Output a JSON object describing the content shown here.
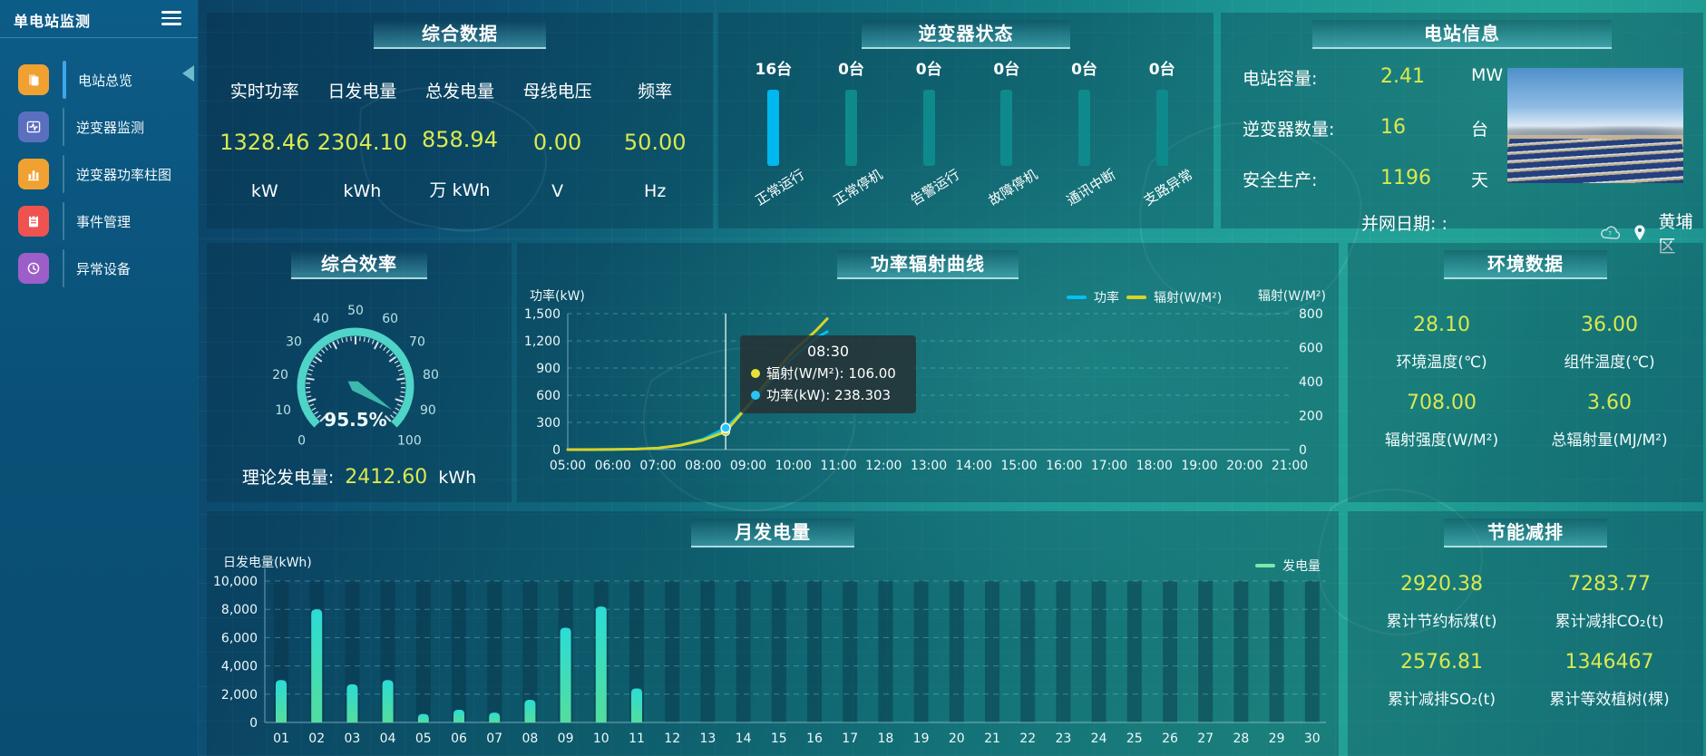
{
  "sidebar": {
    "title": "单电站监测",
    "items": [
      {
        "label": "电站总览",
        "icon": "overview-icon",
        "color": "#f0a132",
        "active": true
      },
      {
        "label": "逆变器监测",
        "icon": "inverter-monitor-icon",
        "color": "#5b6fc0",
        "active": false
      },
      {
        "label": "逆变器功率柱图",
        "icon": "inverter-power-bars-icon",
        "color": "#f0a132",
        "active": false
      },
      {
        "label": "事件管理",
        "icon": "event-management-icon",
        "color": "#ef5350",
        "active": false
      },
      {
        "label": "异常设备",
        "icon": "abnormal-device-icon",
        "color": "#9c5fc9",
        "active": false
      }
    ]
  },
  "summary_panel": {
    "title": "综合数据",
    "metrics": [
      {
        "label": "实时功率",
        "value": "1328.46",
        "unit": "kW"
      },
      {
        "label": "日发电量",
        "value": "2304.10",
        "unit": "kWh"
      },
      {
        "label": "总发电量",
        "value": "858.94",
        "unit": "万 kWh"
      },
      {
        "label": "母线电压",
        "value": "0.00",
        "unit": "V"
      },
      {
        "label": "频率",
        "value": "50.00",
        "unit": "Hz"
      }
    ]
  },
  "inverter_panel": {
    "title": "逆变器状态",
    "items": [
      {
        "count": "16台",
        "label": "正常运行",
        "highlight": true
      },
      {
        "count": "0台",
        "label": "正常停机",
        "highlight": false
      },
      {
        "count": "0台",
        "label": "告警运行",
        "highlight": false
      },
      {
        "count": "0台",
        "label": "故障停机",
        "highlight": false
      },
      {
        "count": "0台",
        "label": "通讯中断",
        "highlight": false
      },
      {
        "count": "0台",
        "label": "支路异常",
        "highlight": false
      }
    ]
  },
  "station_panel": {
    "title": "电站信息",
    "rows": [
      {
        "label": "电站容量:",
        "value": "2.41",
        "unit": "MW"
      },
      {
        "label": "逆变器数量:",
        "value": "16",
        "unit": "台"
      },
      {
        "label": "安全生产:",
        "value": "1196",
        "unit": "天"
      }
    ],
    "grid_date_label": "并网日期: :",
    "location": "黄埔区"
  },
  "efficiency_panel": {
    "title": "综合效率",
    "theory_label": "理论发电量:",
    "theory_value": "2412.60",
    "theory_unit": "kWh"
  },
  "power_panel": {
    "title": "功率辐射曲线",
    "left_axis_label": "功率(kW)",
    "right_axis_label": "辐射(W/M²)",
    "legend": [
      {
        "name": "功率",
        "color": "#00c2f4"
      },
      {
        "name": "辐射(W/M²)",
        "color": "#d9d327"
      }
    ],
    "tooltip": {
      "time": "08:30",
      "rows": [
        {
          "name": "辐射(W/M²): 106.00",
          "color": "#e6e23a"
        },
        {
          "name": "功率(kW): 238.303",
          "color": "#27c5f5"
        }
      ]
    }
  },
  "environment_panel": {
    "title": "环境数据",
    "metrics": [
      {
        "value": "28.10",
        "label": "环境温度(℃)"
      },
      {
        "value": "36.00",
        "label": "组件温度(℃)"
      },
      {
        "value": "708.00",
        "label": "辐射强度(W/M²)"
      },
      {
        "value": "3.60",
        "label": "总辐射量(MJ/M²)"
      }
    ]
  },
  "monthly_panel": {
    "title": "月发电量",
    "ylabel": "日发电量(kWh)",
    "legend": "发电量"
  },
  "saving_panel": {
    "title": "节能减排",
    "metrics": [
      {
        "value": "2920.38",
        "label": "累计节约标煤(t)"
      },
      {
        "value": "7283.77",
        "label": "累计减排CO₂(t)"
      },
      {
        "value": "2576.81",
        "label": "累计减排SO₂(t)"
      },
      {
        "value": "1346467",
        "label": "累计等效植树(棵)"
      }
    ]
  },
  "chart_data": [
    {
      "id": "inverter_status_bars",
      "type": "bar",
      "title": "逆变器状态",
      "categories": [
        "正常运行",
        "正常停机",
        "告警运行",
        "故障停机",
        "通讯中断",
        "支路异常"
      ],
      "values": [
        16,
        0,
        0,
        0,
        0,
        0
      ],
      "bar_colors": [
        "#00b7f0",
        "#0f8a8c",
        "#0f8a8c",
        "#0f8a8c",
        "#0f8a8c",
        "#0f8a8c"
      ]
    },
    {
      "id": "efficiency_gauge",
      "type": "gauge",
      "min": 0,
      "max": 100,
      "tick_labels": [
        "0",
        "10",
        "20",
        "30",
        "40",
        "50",
        "60",
        "70",
        "80",
        "90",
        "100"
      ],
      "value": 95.5,
      "value_label": "95.5%",
      "ring_color": "#4fd4c8"
    },
    {
      "id": "power_radiation_curve",
      "type": "line",
      "title": "功率辐射曲线",
      "x_labels": [
        "05:00",
        "06:00",
        "07:00",
        "08:00",
        "09:00",
        "10:00",
        "11:00",
        "12:00",
        "13:00",
        "14:00",
        "15:00",
        "16:00",
        "17:00",
        "18:00",
        "19:00",
        "20:00",
        "21:00"
      ],
      "x_range_hours": [
        5,
        21
      ],
      "left_axis": {
        "label": "功率(kW)",
        "ticks": [
          "1,500",
          "1,200",
          "900",
          "600",
          "300",
          "0"
        ],
        "max": 1500
      },
      "right_axis": {
        "label": "辐射(W/M²)",
        "ticks": [
          "800",
          "600",
          "400",
          "200",
          "0"
        ],
        "max": 800
      },
      "series": [
        {
          "name": "功率",
          "unit": "kW",
          "axis": "left",
          "color": "#00c2f4",
          "points": [
            [
              5,
              0
            ],
            [
              5.5,
              0
            ],
            [
              6,
              2
            ],
            [
              6.5,
              6
            ],
            [
              7,
              16
            ],
            [
              7.5,
              48
            ],
            [
              8,
              115
            ],
            [
              8.5,
              238.3
            ],
            [
              9,
              480
            ],
            [
              9.5,
              760
            ],
            [
              10,
              1020
            ],
            [
              10.5,
              1230
            ],
            [
              10.75,
              1300
            ]
          ]
        },
        {
          "name": "辐射(W/M²)",
          "unit": "W/M²",
          "axis": "right",
          "color": "#d9d327",
          "points": [
            [
              5,
              0
            ],
            [
              5.5,
              0
            ],
            [
              6,
              1
            ],
            [
              6.5,
              3
            ],
            [
              7,
              9
            ],
            [
              7.5,
              26
            ],
            [
              8,
              56
            ],
            [
              8.5,
              106
            ],
            [
              9,
              260
            ],
            [
              9.5,
              430
            ],
            [
              10,
              580
            ],
            [
              10.5,
              700
            ],
            [
              10.75,
              770
            ]
          ]
        }
      ],
      "hover": {
        "x_hours": 8.5,
        "power": 238.3,
        "radiation": 106
      }
    },
    {
      "id": "monthly_generation",
      "type": "bar",
      "title": "月发电量",
      "ylabel": "日发电量(kWh)",
      "legend": "发电量",
      "categories": [
        "01",
        "02",
        "03",
        "04",
        "05",
        "06",
        "07",
        "08",
        "09",
        "10",
        "11",
        "12",
        "13",
        "14",
        "15",
        "16",
        "17",
        "18",
        "19",
        "20",
        "21",
        "22",
        "23",
        "24",
        "25",
        "26",
        "27",
        "28",
        "29",
        "30"
      ],
      "values": [
        3000,
        8000,
        2700,
        3000,
        600,
        900,
        700,
        1600,
        6700,
        8200,
        2400,
        0,
        0,
        0,
        0,
        0,
        0,
        0,
        0,
        0,
        0,
        0,
        0,
        0,
        0,
        0,
        0,
        0,
        0,
        0
      ],
      "yticks": [
        "10,000",
        "8,000",
        "6,000",
        "4,000",
        "2,000",
        "0"
      ],
      "ymax": 10000
    }
  ]
}
